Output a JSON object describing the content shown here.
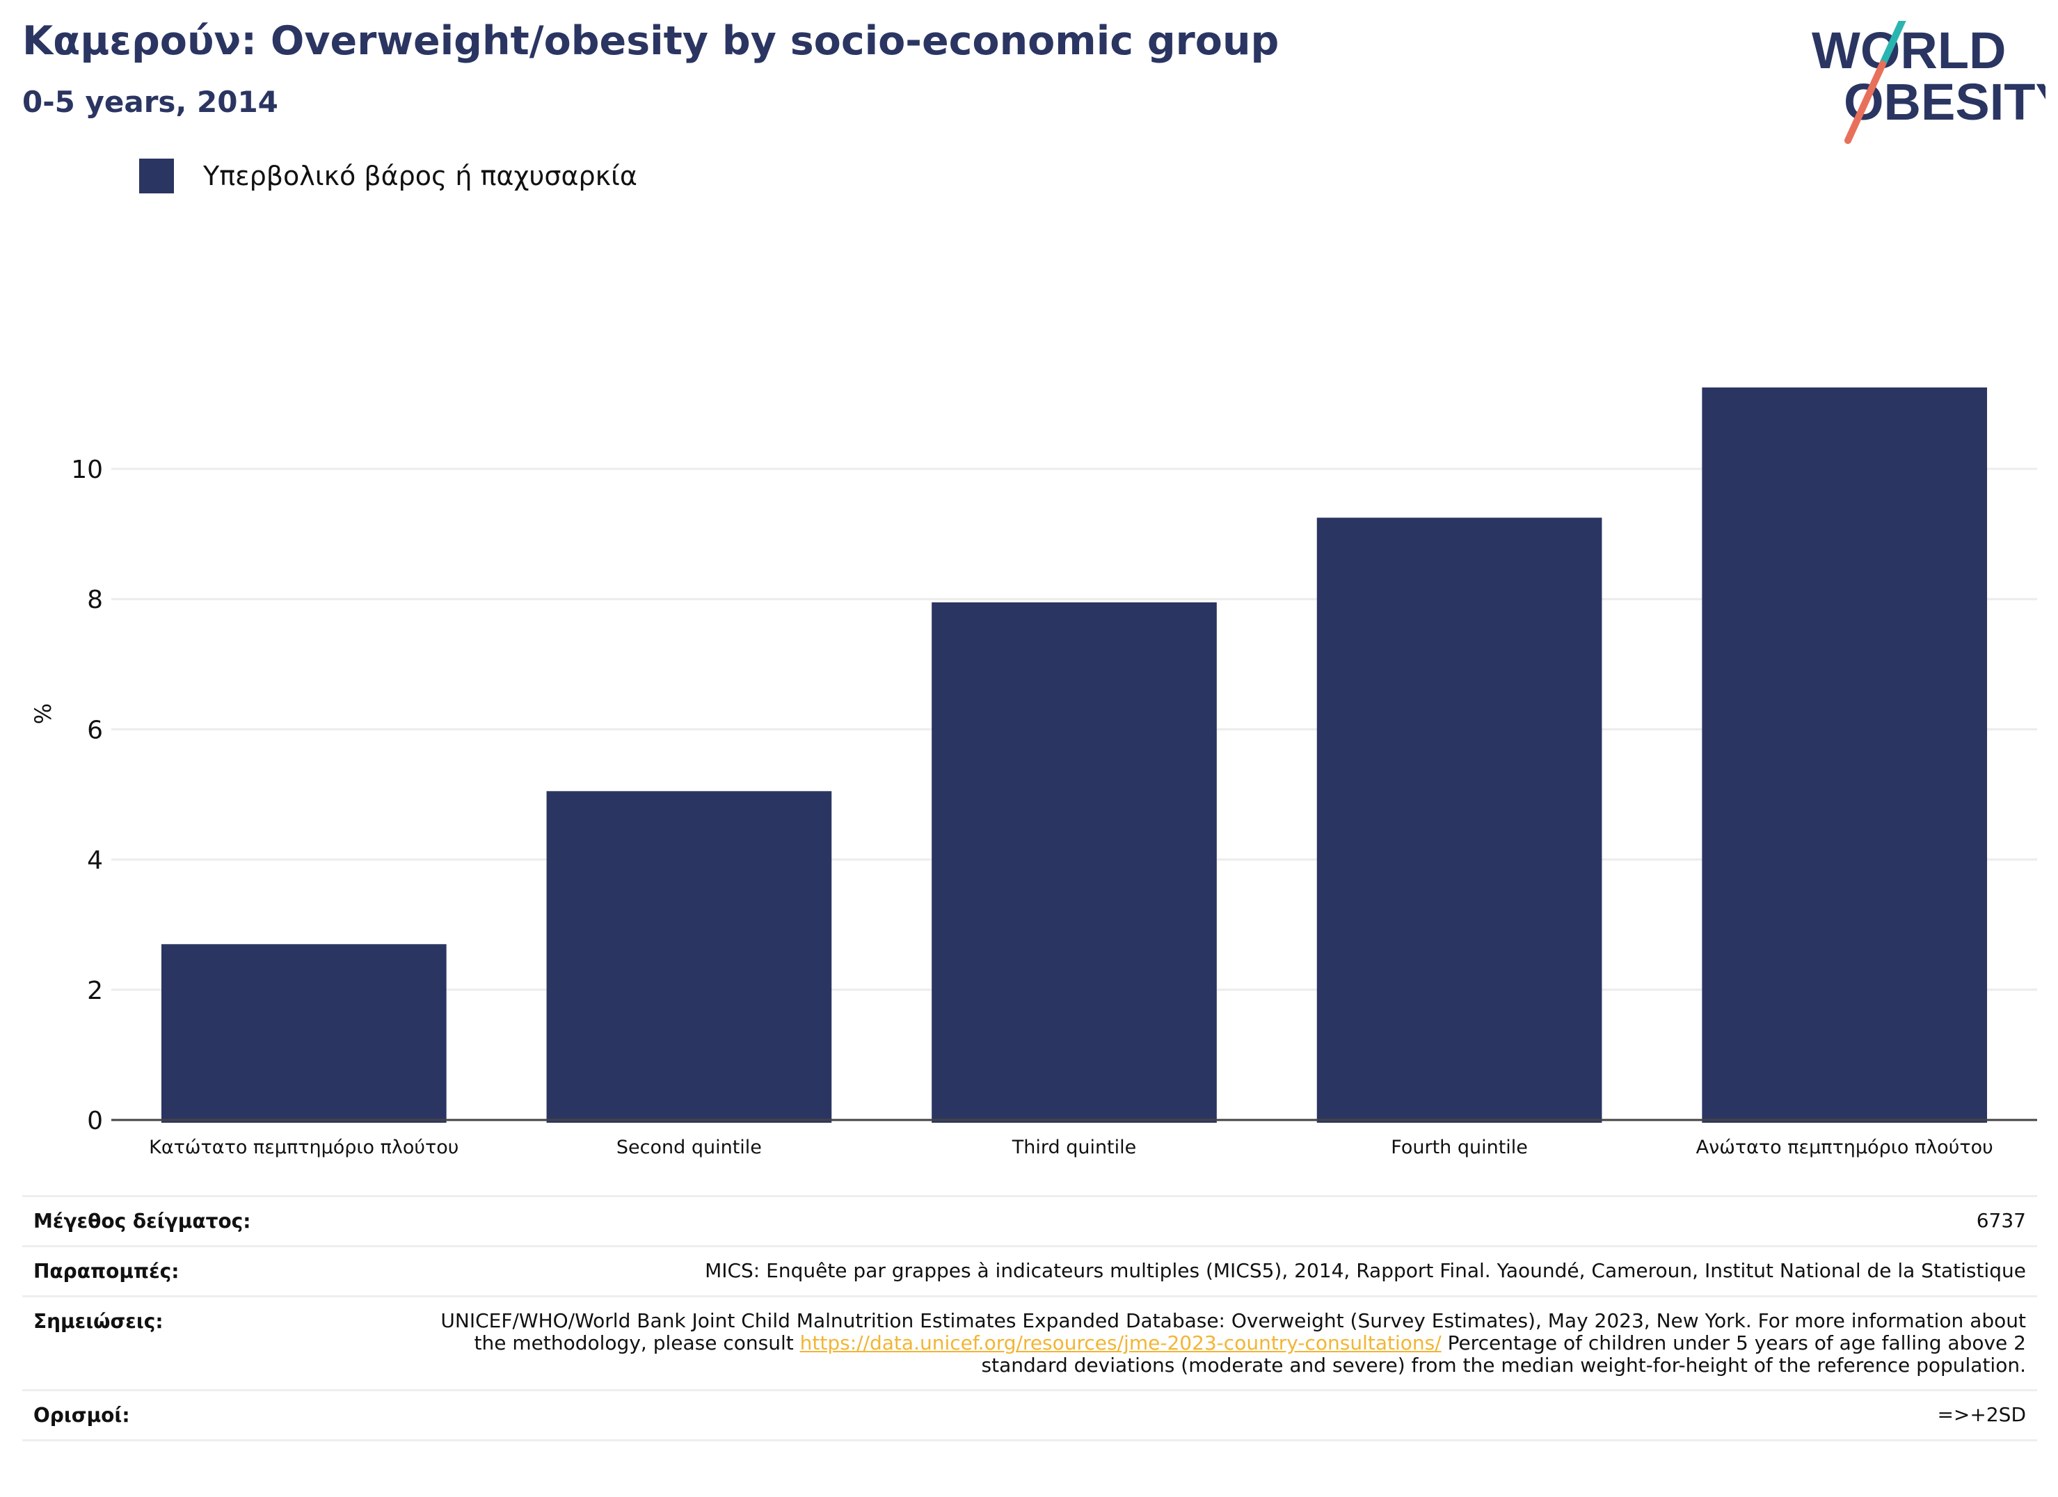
{
  "header": {
    "title": "Καμερούν: Overweight/obesity by socio-economic group",
    "subtitle": "0-5 years, 2014"
  },
  "logo": {
    "line1": "WORLD",
    "line2": "OBESITY",
    "colors": {
      "text": "#2b3562",
      "slash_top": "#2bb5b0",
      "slash_bottom": "#e8705a"
    }
  },
  "colors": {
    "bar": "#2b3562",
    "title": "#2b3562",
    "link": "#f2b534",
    "grid": "#ececec",
    "axis": "#444444"
  },
  "chart_data": {
    "type": "bar",
    "title": "Καμερούν: Overweight/obesity by socio-economic group",
    "subtitle": "0-5 years, 2014",
    "categories": [
      "Κατώτατο πεμπτημόριο πλούτου",
      "Second quintile",
      "Third quintile",
      "Fourth quintile",
      "Ανώτατο πεμπτημόριο πλούτου"
    ],
    "series": [
      {
        "name": "Υπερβολικό βάρος ή παχυσαρκία",
        "values": [
          2.7,
          5.05,
          7.95,
          9.25,
          11.25
        ],
        "color": "#2b3562"
      }
    ],
    "xlabel": "",
    "ylabel": "%",
    "ylim": [
      0,
      12.5
    ],
    "yticks": [
      0,
      2,
      4,
      6,
      8,
      10
    ],
    "grid": true,
    "legend": "top-left"
  },
  "info": {
    "sample_label": "Μέγεθος δείγματος:",
    "sample_value": "6737",
    "refs_label": "Παραπομπές:",
    "refs_value": "MICS: Enquête par grappes à indicateurs multiples (MICS5), 2014, Rapport Final. Yaoundé, Cameroun, Institut National de la Statistique",
    "notes_label": "Σημειώσεις:",
    "notes_before": "UNICEF/WHO/World Bank Joint Child Malnutrition Estimates Expanded Database: Overweight (Survey Estimates), May 2023, New York. For more information about the methodology, please consult ",
    "notes_link": "https://data.unicef.org/resources/jme-2023-country-consultations/",
    "notes_after": " Percentage of children under 5 years of age falling above 2 standard deviations (moderate and severe) from the median weight-for-height of the reference population.",
    "defs_label": "Ορισμοί:",
    "defs_value": "=>+2SD"
  }
}
